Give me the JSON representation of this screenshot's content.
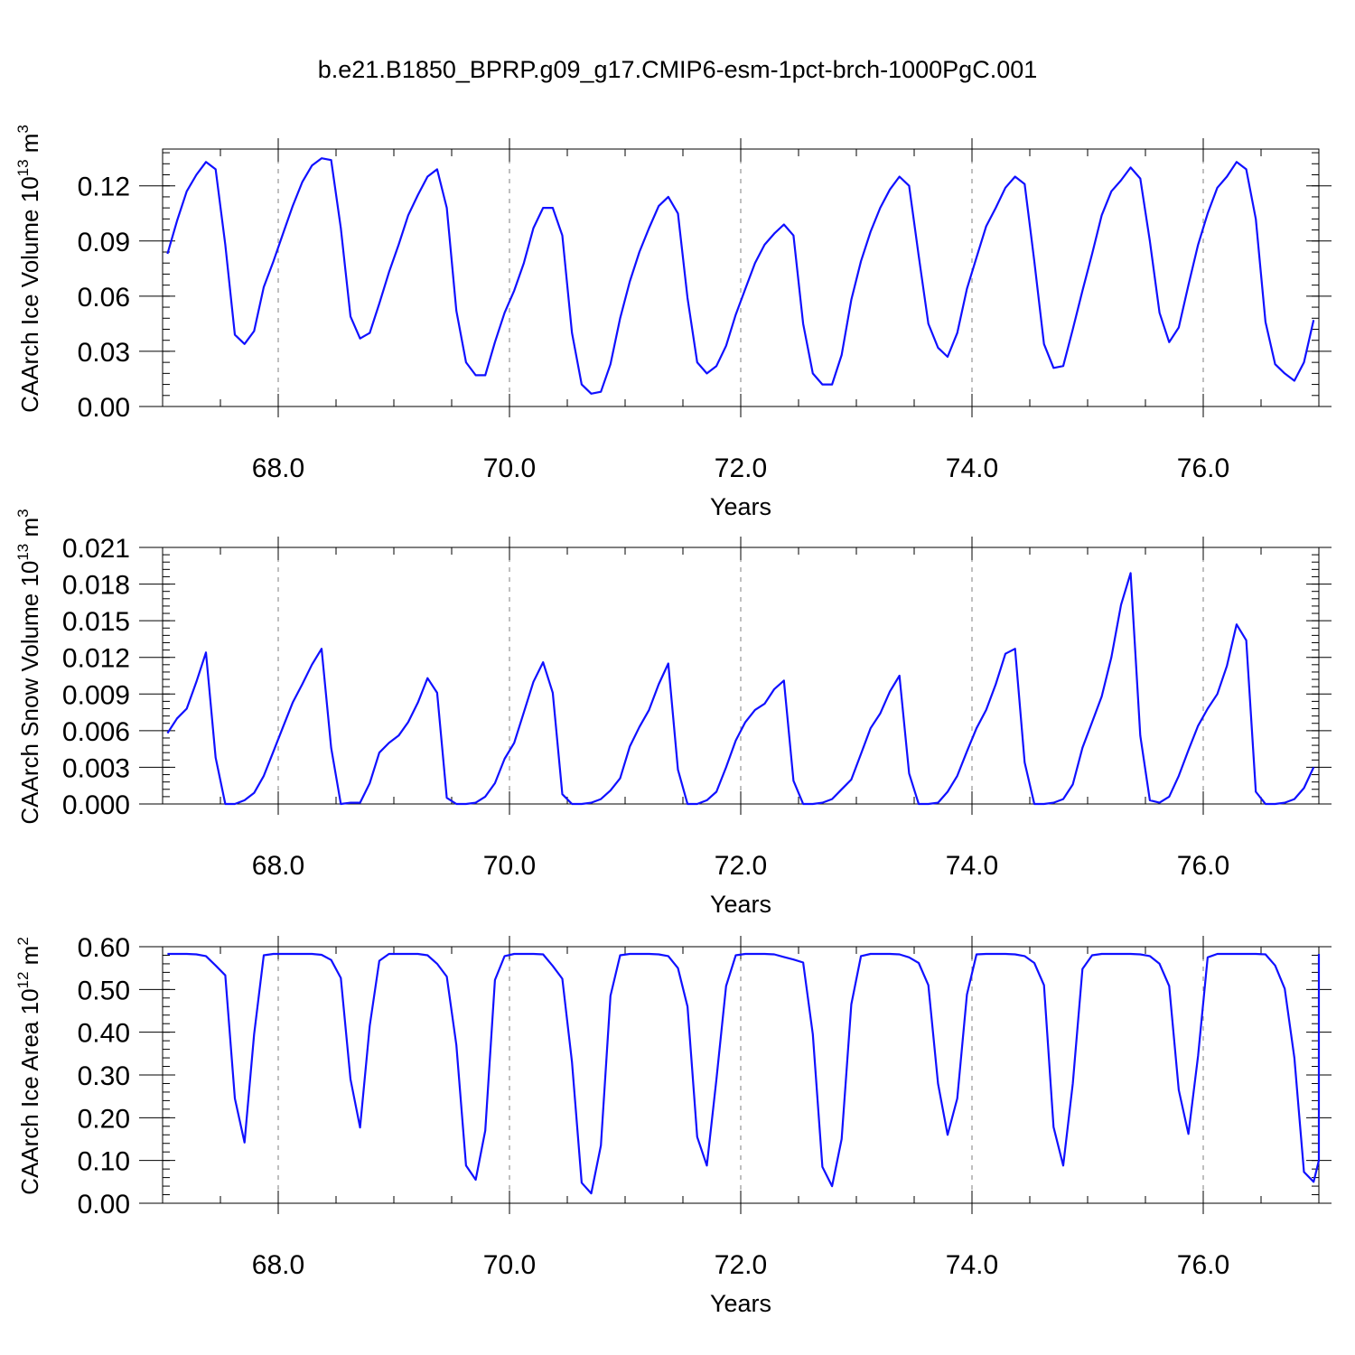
{
  "title": "b.e21.B1850_BPRP.g09_g17.CMIP6-esm-1pct-brch-1000PgC.001",
  "colors": {
    "line": "#1010ff",
    "axis": "#000000",
    "grid": "#7f7f7f",
    "background": "#ffffff"
  },
  "chart_data": [
    {
      "type": "line",
      "ylabel_text": "CAArch Ice Volume 10",
      "ylabel_exp": "13",
      "ylabel_unit": "m",
      "ylabel_unit_exp": "3",
      "xlabel": "Years",
      "xlim": [
        67.0,
        77.0
      ],
      "ylim": [
        0.0,
        0.14
      ],
      "xticks": [
        "68.0",
        "70.0",
        "72.0",
        "74.0",
        "76.0"
      ],
      "xtick_values": [
        68,
        70,
        72,
        74,
        76
      ],
      "yticks": [
        "0.00",
        "0.03",
        "0.06",
        "0.09",
        "0.12"
      ],
      "ytick_values": [
        0.0,
        0.03,
        0.06,
        0.09,
        0.12
      ],
      "grid": "vertical dashed at major x ticks",
      "x_start": 67.042,
      "x_step": 0.0833,
      "values": [
        0.083,
        0.101,
        0.117,
        0.126,
        0.133,
        0.129,
        0.088,
        0.039,
        0.034,
        0.041,
        0.065,
        0.079,
        0.094,
        0.109,
        0.122,
        0.131,
        0.135,
        0.134,
        0.097,
        0.049,
        0.037,
        0.04,
        0.056,
        0.073,
        0.088,
        0.104,
        0.115,
        0.125,
        0.129,
        0.108,
        0.052,
        0.024,
        0.017,
        0.017,
        0.035,
        0.051,
        0.063,
        0.078,
        0.097,
        0.108,
        0.108,
        0.093,
        0.04,
        0.012,
        0.007,
        0.008,
        0.023,
        0.048,
        0.068,
        0.084,
        0.097,
        0.109,
        0.114,
        0.105,
        0.059,
        0.024,
        0.018,
        0.022,
        0.033,
        0.05,
        0.064,
        0.078,
        0.088,
        0.094,
        0.099,
        0.093,
        0.045,
        0.018,
        0.012,
        0.012,
        0.028,
        0.058,
        0.079,
        0.095,
        0.108,
        0.118,
        0.125,
        0.12,
        0.082,
        0.045,
        0.032,
        0.027,
        0.04,
        0.064,
        0.081,
        0.098,
        0.108,
        0.119,
        0.125,
        0.121,
        0.079,
        0.034,
        0.021,
        0.022,
        0.042,
        0.063,
        0.083,
        0.104,
        0.117,
        0.123,
        0.13,
        0.124,
        0.09,
        0.051,
        0.035,
        0.043,
        0.066,
        0.088,
        0.105,
        0.119,
        0.125,
        0.133,
        0.129,
        0.102,
        0.046,
        0.023,
        0.018,
        0.014,
        0.024,
        0.047
      ]
    },
    {
      "type": "line",
      "ylabel_text": "CAArch Snow Volume 10",
      "ylabel_exp": "13",
      "ylabel_unit": "m",
      "ylabel_unit_exp": "3",
      "xlabel": "Years",
      "xlim": [
        67.0,
        77.0
      ],
      "ylim": [
        0.0,
        0.021
      ],
      "xticks": [
        "68.0",
        "70.0",
        "72.0",
        "74.0",
        "76.0"
      ],
      "xtick_values": [
        68,
        70,
        72,
        74,
        76
      ],
      "yticks": [
        "0.000",
        "0.003",
        "0.006",
        "0.009",
        "0.012",
        "0.015",
        "0.018",
        "0.021"
      ],
      "ytick_values": [
        0.0,
        0.003,
        0.006,
        0.009,
        0.012,
        0.015,
        0.018,
        0.021
      ],
      "grid": "vertical dashed at major x ticks",
      "x_start": 67.042,
      "x_step": 0.0833,
      "values": [
        0.0058,
        0.007,
        0.0078,
        0.01,
        0.0124,
        0.0038,
        0.0,
        0.0,
        0.0003,
        0.0009,
        0.0023,
        0.0043,
        0.0063,
        0.0083,
        0.0098,
        0.0114,
        0.0127,
        0.0046,
        0.0,
        0.0001,
        0.0001,
        0.0017,
        0.0042,
        0.005,
        0.0056,
        0.0067,
        0.0083,
        0.0103,
        0.0091,
        0.0005,
        0.0,
        0.0,
        0.0001,
        0.0006,
        0.0017,
        0.0037,
        0.005,
        0.0075,
        0.01,
        0.0116,
        0.0091,
        0.0008,
        0.0,
        0.0,
        0.0001,
        0.0004,
        0.0011,
        0.0021,
        0.0047,
        0.0063,
        0.0077,
        0.0098,
        0.0115,
        0.0028,
        0.0,
        0.0,
        0.0003,
        0.001,
        0.003,
        0.0052,
        0.0067,
        0.0077,
        0.0082,
        0.0094,
        0.0101,
        0.0019,
        0.0,
        0.0,
        0.0001,
        0.0004,
        0.0012,
        0.002,
        0.0041,
        0.0062,
        0.0074,
        0.0092,
        0.0105,
        0.0025,
        0.0,
        0.0,
        0.0001,
        0.001,
        0.0023,
        0.0043,
        0.0062,
        0.0077,
        0.0098,
        0.0123,
        0.0127,
        0.0034,
        0.0,
        0.0,
        0.0001,
        0.0004,
        0.0016,
        0.0046,
        0.0067,
        0.0088,
        0.012,
        0.0163,
        0.0189,
        0.0056,
        0.0003,
        0.0001,
        0.0006,
        0.0023,
        0.0044,
        0.0064,
        0.0078,
        0.009,
        0.0113,
        0.0147,
        0.0134,
        0.001,
        0.0,
        0.0,
        0.0001,
        0.0004,
        0.0013,
        0.003
      ]
    },
    {
      "type": "line",
      "ylabel_text": "CAArch Ice Area 10",
      "ylabel_exp": "12",
      "ylabel_unit": "m",
      "ylabel_unit_exp": "2",
      "xlabel": "Years",
      "xlim": [
        67.0,
        77.0
      ],
      "ylim": [
        0.0,
        0.6
      ],
      "xticks": [
        "68.0",
        "70.0",
        "72.0",
        "74.0",
        "76.0"
      ],
      "xtick_values": [
        68,
        70,
        72,
        74,
        76
      ],
      "yticks": [
        "0.00",
        "0.10",
        "0.20",
        "0.30",
        "0.40",
        "0.50",
        "0.60"
      ],
      "ytick_values": [
        0.0,
        0.1,
        0.2,
        0.3,
        0.4,
        0.5,
        0.6
      ],
      "grid": "vertical dashed at major x ticks",
      "x_start": 67.042,
      "x_step": 0.0833,
      "values": [
        0.583,
        0.583,
        0.583,
        0.582,
        0.578,
        0.556,
        0.533,
        0.245,
        0.142,
        0.395,
        0.58,
        0.583,
        0.583,
        0.583,
        0.583,
        0.583,
        0.581,
        0.569,
        0.527,
        0.29,
        0.177,
        0.415,
        0.567,
        0.583,
        0.583,
        0.583,
        0.583,
        0.58,
        0.56,
        0.53,
        0.37,
        0.088,
        0.055,
        0.17,
        0.522,
        0.578,
        0.583,
        0.583,
        0.583,
        0.582,
        0.555,
        0.525,
        0.33,
        0.048,
        0.023,
        0.135,
        0.485,
        0.58,
        0.583,
        0.583,
        0.583,
        0.582,
        0.578,
        0.55,
        0.46,
        0.155,
        0.088,
        0.29,
        0.508,
        0.58,
        0.583,
        0.583,
        0.583,
        0.582,
        0.576,
        0.57,
        0.563,
        0.395,
        0.085,
        0.04,
        0.15,
        0.465,
        0.578,
        0.583,
        0.583,
        0.583,
        0.582,
        0.575,
        0.562,
        0.51,
        0.28,
        0.16,
        0.245,
        0.488,
        0.582,
        0.583,
        0.583,
        0.583,
        0.582,
        0.578,
        0.562,
        0.51,
        0.178,
        0.088,
        0.28,
        0.548,
        0.58,
        0.583,
        0.583,
        0.583,
        0.583,
        0.582,
        0.578,
        0.56,
        0.508,
        0.265,
        0.162,
        0.345,
        0.575,
        0.583,
        0.583,
        0.583,
        0.583,
        0.583,
        0.582,
        0.556,
        0.502,
        0.34,
        0.073,
        0.05,
        0.1,
        0.435,
        0.583
      ]
    }
  ]
}
